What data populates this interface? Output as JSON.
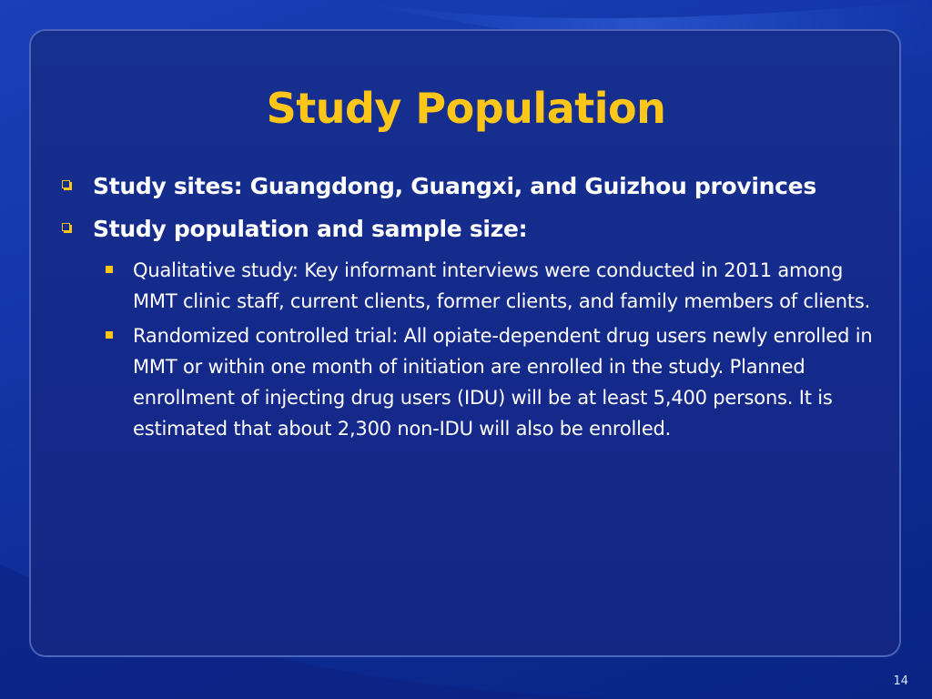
{
  "slide": {
    "title": "Study Population",
    "bullets": [
      {
        "text": "Study sites: Guangdong, Guangxi, and Guizhou provinces",
        "sub": []
      },
      {
        "text": "Study population and sample size:",
        "sub": [
          "Qualitative study: Key informant interviews were conducted in 2011 among MMT clinic staff, current clients, former clients, and family members of clients.",
          "Randomized controlled trial: All opiate-dependent drug users newly enrolled in MMT or within one month of initiation are enrolled in the study. Planned enrollment of injecting drug users (IDU) will be at least 5,400 persons. It is estimated that about 2,300 non-IDU will also be enrolled."
        ]
      }
    ],
    "page_number": "14"
  },
  "colors": {
    "title": "#ffc61a",
    "bullet": "#ffc61a",
    "text": "#ffffff",
    "background": "#14298a"
  },
  "icons": {
    "level1_bullet": "hollow-square-bullet-icon",
    "level2_bullet": "filled-square-bullet-icon"
  }
}
